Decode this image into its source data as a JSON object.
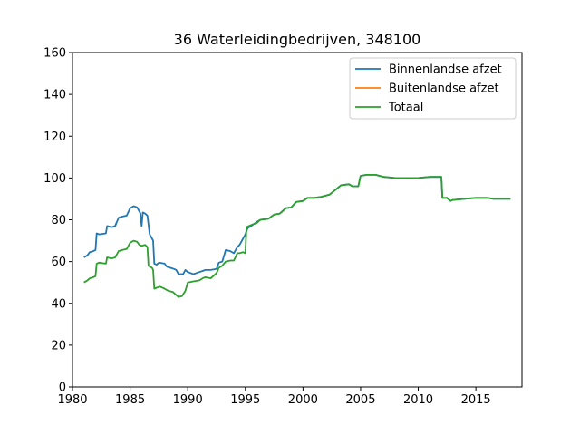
{
  "chart_data": {
    "type": "line",
    "title": "36 Waterleidingbedrijven, 348100",
    "xlabel": "",
    "ylabel": "",
    "xlim": [
      1980,
      2019
    ],
    "ylim": [
      0,
      160
    ],
    "xticks": [
      "1980",
      "1985",
      "1990",
      "1995",
      "2000",
      "2005",
      "2010",
      "2015"
    ],
    "yticks": [
      "0",
      "20",
      "40",
      "60",
      "80",
      "100",
      "120",
      "140",
      "160"
    ],
    "grid": false,
    "legend_position": "top-right",
    "series": [
      {
        "name": "Binnenlandse afzet",
        "color": "#1f77b4",
        "points": [
          [
            1981.0,
            62
          ],
          [
            1981.3,
            63
          ],
          [
            1981.5,
            64.5
          ],
          [
            1981.8,
            65
          ],
          [
            1982.0,
            65.5
          ],
          [
            1982.1,
            73.5
          ],
          [
            1982.3,
            73
          ],
          [
            1982.9,
            73.5
          ],
          [
            1983.0,
            77
          ],
          [
            1983.4,
            76.5
          ],
          [
            1983.7,
            77
          ],
          [
            1984.0,
            81
          ],
          [
            1984.3,
            81.5
          ],
          [
            1984.7,
            82
          ],
          [
            1985.0,
            85.5
          ],
          [
            1985.3,
            86.5
          ],
          [
            1985.6,
            86
          ],
          [
            1985.8,
            84
          ],
          [
            1985.9,
            83
          ],
          [
            1986.0,
            77
          ],
          [
            1986.1,
            83.5
          ],
          [
            1986.3,
            83
          ],
          [
            1986.5,
            82
          ],
          [
            1986.7,
            73
          ],
          [
            1986.9,
            71
          ],
          [
            1987.0,
            70
          ],
          [
            1987.1,
            59
          ],
          [
            1987.3,
            58.5
          ],
          [
            1987.5,
            59.5
          ],
          [
            1988.0,
            59
          ],
          [
            1988.2,
            57.5
          ],
          [
            1988.5,
            57
          ],
          [
            1988.8,
            56.5
          ],
          [
            1989.0,
            56
          ],
          [
            1989.2,
            54
          ],
          [
            1989.6,
            54
          ],
          [
            1989.8,
            56
          ],
          [
            1990.0,
            55
          ],
          [
            1990.5,
            54
          ],
          [
            1991.0,
            55
          ],
          [
            1991.3,
            55.5
          ],
          [
            1991.5,
            56
          ],
          [
            1992.0,
            56
          ],
          [
            1992.5,
            56.5
          ],
          [
            1992.7,
            59.5
          ],
          [
            1993.0,
            60
          ],
          [
            1993.3,
            65.5
          ],
          [
            1993.7,
            65
          ],
          [
            1994.0,
            64
          ],
          [
            1994.3,
            67
          ],
          [
            1994.5,
            68
          ],
          [
            1994.8,
            71
          ],
          [
            1995.0,
            73
          ],
          [
            1995.2,
            76
          ],
          [
            1995.5,
            77
          ],
          [
            1996.0,
            79
          ],
          [
            1996.3,
            80
          ],
          [
            1997.0,
            80.5
          ],
          [
            1997.5,
            82.5
          ],
          [
            1998.0,
            83
          ],
          [
            1998.5,
            85.5
          ],
          [
            1999.0,
            86
          ],
          [
            1999.4,
            88.5
          ],
          [
            2000.0,
            89
          ],
          [
            2000.4,
            90.5
          ],
          [
            2001.0,
            90.5
          ],
          [
            2001.6,
            91
          ],
          [
            2002.3,
            92
          ],
          [
            2003.3,
            96.5
          ],
          [
            2004.0,
            97
          ],
          [
            2004.3,
            96
          ],
          [
            2004.8,
            96
          ],
          [
            2005.0,
            101
          ],
          [
            2005.5,
            101.5
          ],
          [
            2006.3,
            101.5
          ],
          [
            2007.0,
            100.5
          ],
          [
            2008.0,
            100
          ],
          [
            2010.0,
            100
          ],
          [
            2011.0,
            100.5
          ],
          [
            2012.0,
            100.5
          ],
          [
            2012.1,
            90.5
          ],
          [
            2012.5,
            90.5
          ],
          [
            2012.8,
            89
          ],
          [
            2013.0,
            89.5
          ],
          [
            2014.0,
            90
          ],
          [
            2015.0,
            90.5
          ],
          [
            2016.0,
            90.5
          ],
          [
            2016.5,
            90
          ],
          [
            2017.5,
            90
          ],
          [
            2018.0,
            90
          ]
        ]
      },
      {
        "name": "Buitenlandse afzet",
        "color": "#ff7f0e",
        "points": []
      },
      {
        "name": "Totaal",
        "color": "#2ca02c",
        "points": [
          [
            1981.0,
            50
          ],
          [
            1981.3,
            51
          ],
          [
            1981.5,
            52
          ],
          [
            1981.8,
            52.5
          ],
          [
            1982.0,
            53
          ],
          [
            1982.1,
            59
          ],
          [
            1982.3,
            59.5
          ],
          [
            1982.9,
            59
          ],
          [
            1983.0,
            62
          ],
          [
            1983.4,
            61.5
          ],
          [
            1983.7,
            62
          ],
          [
            1984.0,
            65
          ],
          [
            1984.3,
            65.5
          ],
          [
            1984.7,
            66
          ],
          [
            1985.0,
            69
          ],
          [
            1985.3,
            70
          ],
          [
            1985.6,
            69.5
          ],
          [
            1985.8,
            68
          ],
          [
            1986.0,
            67.5
          ],
          [
            1986.3,
            68
          ],
          [
            1986.5,
            67
          ],
          [
            1986.6,
            58
          ],
          [
            1986.9,
            57
          ],
          [
            1987.0,
            56
          ],
          [
            1987.1,
            47
          ],
          [
            1987.3,
            47.5
          ],
          [
            1987.6,
            48
          ],
          [
            1988.0,
            47
          ],
          [
            1988.3,
            46
          ],
          [
            1988.7,
            45.5
          ],
          [
            1989.0,
            44
          ],
          [
            1989.2,
            43
          ],
          [
            1989.5,
            43.5
          ],
          [
            1989.8,
            46
          ],
          [
            1990.0,
            50
          ],
          [
            1990.5,
            50.5
          ],
          [
            1991.0,
            51
          ],
          [
            1991.3,
            52
          ],
          [
            1991.5,
            52.5
          ],
          [
            1992.0,
            52
          ],
          [
            1992.5,
            54.5
          ],
          [
            1992.7,
            57
          ],
          [
            1993.0,
            58
          ],
          [
            1993.3,
            60
          ],
          [
            1993.7,
            60.5
          ],
          [
            1994.0,
            60.5
          ],
          [
            1994.3,
            64
          ],
          [
            1994.5,
            64
          ],
          [
            1994.8,
            64.5
          ],
          [
            1995.0,
            64
          ],
          [
            1995.1,
            76.5
          ],
          [
            1995.5,
            77.5
          ],
          [
            1996.0,
            78.5
          ],
          [
            1996.3,
            80
          ],
          [
            1997.0,
            80.5
          ],
          [
            1997.5,
            82.5
          ],
          [
            1998.0,
            83
          ],
          [
            1998.5,
            85.5
          ],
          [
            1999.0,
            86
          ],
          [
            1999.4,
            88.5
          ],
          [
            2000.0,
            89
          ],
          [
            2000.4,
            90.5
          ],
          [
            2001.0,
            90.5
          ],
          [
            2001.6,
            91
          ],
          [
            2002.3,
            92
          ],
          [
            2003.3,
            96.5
          ],
          [
            2004.0,
            97
          ],
          [
            2004.3,
            96
          ],
          [
            2004.8,
            96
          ],
          [
            2005.0,
            101
          ],
          [
            2005.5,
            101.5
          ],
          [
            2006.3,
            101.5
          ],
          [
            2007.0,
            100.5
          ],
          [
            2008.0,
            100
          ],
          [
            2010.0,
            100
          ],
          [
            2011.0,
            100.5
          ],
          [
            2012.0,
            100.5
          ],
          [
            2012.1,
            90.5
          ],
          [
            2012.5,
            90.5
          ],
          [
            2012.8,
            89
          ],
          [
            2013.0,
            89.5
          ],
          [
            2014.0,
            90
          ],
          [
            2015.0,
            90.5
          ],
          [
            2016.0,
            90.5
          ],
          [
            2016.5,
            90
          ],
          [
            2017.5,
            90
          ],
          [
            2018.0,
            90
          ]
        ]
      }
    ]
  }
}
